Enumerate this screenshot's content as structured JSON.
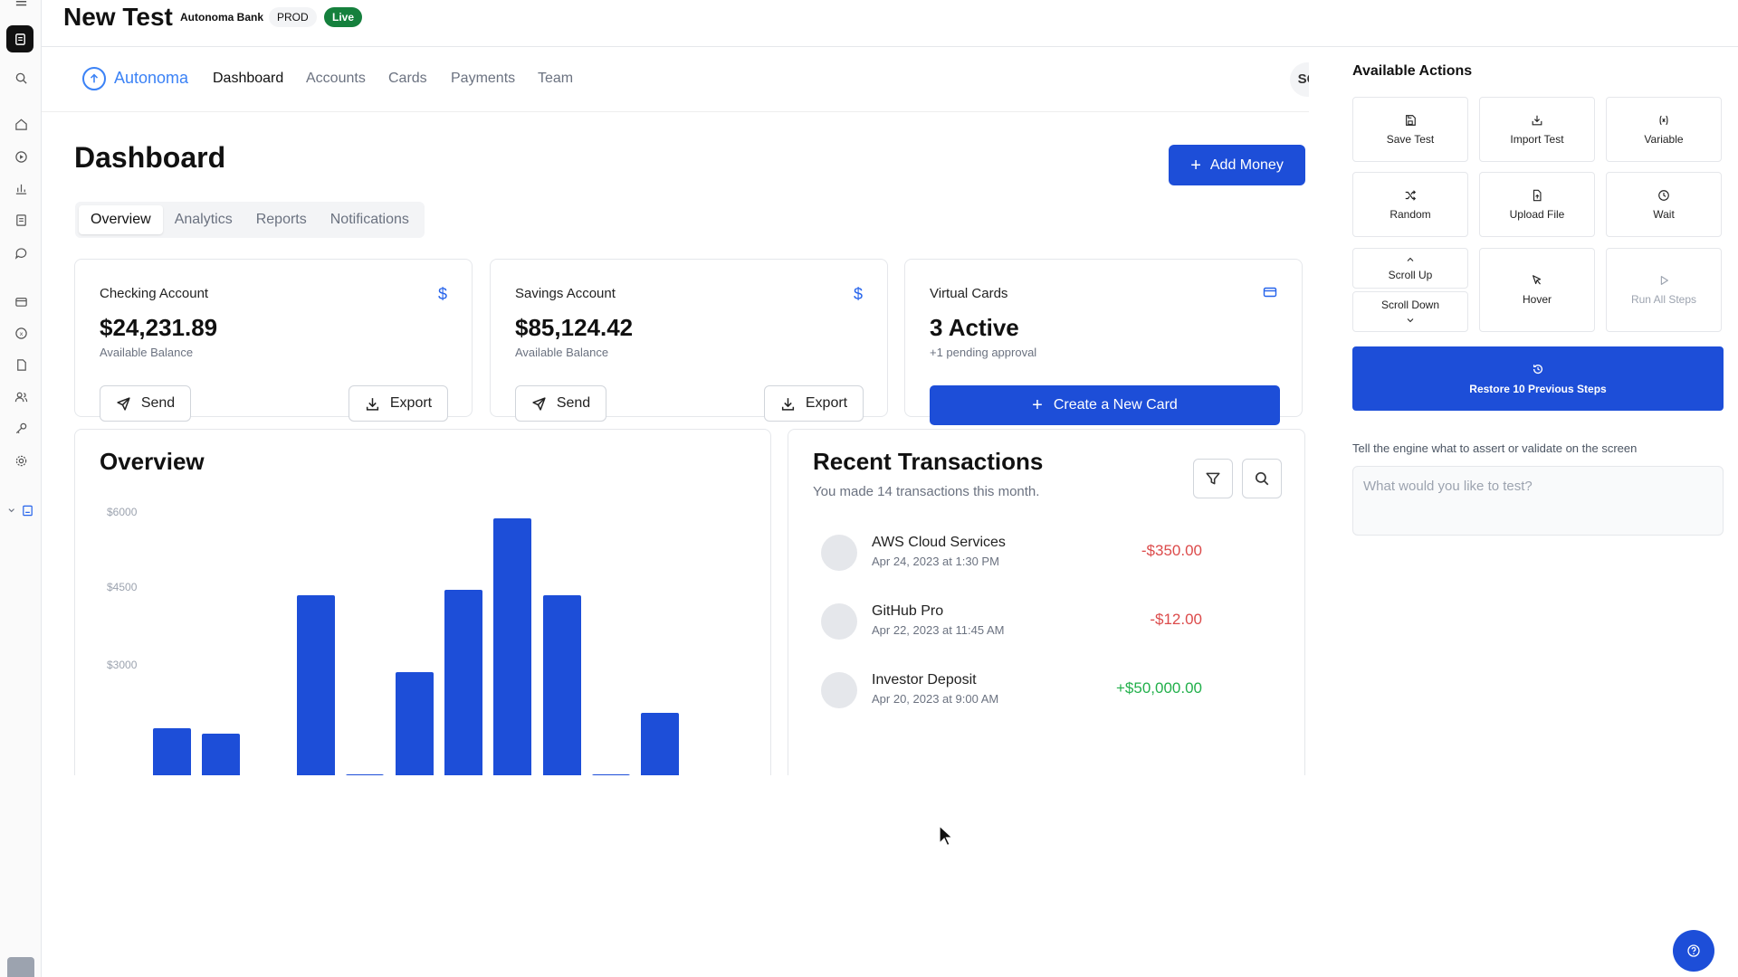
{
  "header": {
    "test_title": "New Test",
    "org": "Autonoma Bank",
    "env": "PROD",
    "status": "Live"
  },
  "app": {
    "brand": "Autonoma",
    "nav": [
      "Dashboard",
      "Accounts",
      "Cards",
      "Payments",
      "Team"
    ],
    "avatar_initials": "SC",
    "page_title": "Dashboard",
    "add_money_label": "Add Money",
    "tabs": [
      "Overview",
      "Analytics",
      "Reports",
      "Notifications"
    ],
    "cards": [
      {
        "label": "Checking Account",
        "amount": "$24,231.89",
        "sub": "Available Balance",
        "send_label": "Send",
        "export_label": "Export"
      },
      {
        "label": "Savings Account",
        "amount": "$85,124.42",
        "sub": "Available Balance",
        "send_label": "Send",
        "export_label": "Export"
      },
      {
        "label": "Virtual Cards",
        "amount": "3 Active",
        "sub": "+1 pending approval",
        "create_label": "Create a New Card"
      }
    ],
    "overview": {
      "title": "Overview"
    },
    "transactions": {
      "title": "Recent Transactions",
      "subtitle": "You made 14 transactions this month.",
      "items": [
        {
          "name": "AWS Cloud Services",
          "date": "Apr 24, 2023 at 1:30 PM",
          "amount": "-$350.00"
        },
        {
          "name": "GitHub Pro",
          "date": "Apr 22, 2023 at 11:45 AM",
          "amount": "-$12.00"
        },
        {
          "name": "Investor Deposit",
          "date": "Apr 20, 2023 at 9:00 AM",
          "amount": "+$50,000.00"
        }
      ]
    }
  },
  "chart_data": {
    "type": "bar",
    "title": "",
    "xlabel": "",
    "ylabel": "",
    "y_ticks": [
      "$6000",
      "$4500",
      "$3000"
    ],
    "ylim": [
      0,
      6000
    ],
    "values": [
      1800,
      1700,
      4400,
      900,
      2900,
      4500,
      5900,
      4400,
      900,
      2100
    ],
    "note_visible_range": "chart cropped below ~$1500"
  },
  "actions": {
    "title": "Available Actions",
    "buttons": [
      {
        "label": "Save Test",
        "icon": "save-icon"
      },
      {
        "label": "Import Test",
        "icon": "import-icon"
      },
      {
        "label": "Variable",
        "icon": "variable-icon"
      },
      {
        "label": "Random",
        "icon": "shuffle-icon"
      },
      {
        "label": "Upload File",
        "icon": "file-upload-icon"
      },
      {
        "label": "Wait",
        "icon": "clock-icon"
      },
      {
        "label": "Scroll Up",
        "icon": "chevron-up-icon"
      },
      {
        "label": "Scroll Down",
        "icon": "chevron-down-icon"
      },
      {
        "label": "Hover",
        "icon": "pointer-icon"
      },
      {
        "label": "Run All Steps",
        "icon": "play-icon"
      }
    ],
    "restore_label": "Restore 10 Previous Steps",
    "assert_label": "Tell the engine what to assert or validate on the screen",
    "assert_placeholder": "What would you like to test?"
  },
  "colors": {
    "accent": "#1d4ed8",
    "live": "#15803d",
    "negative": "#ef4444",
    "positive": "#22c55e"
  }
}
